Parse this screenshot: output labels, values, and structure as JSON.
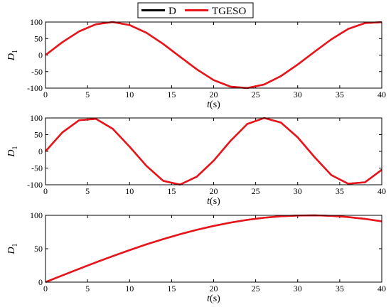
{
  "legend": {
    "entries": [
      {
        "label": "D",
        "color": "#000000"
      },
      {
        "label": "TGESO",
        "color": "#e8141a"
      }
    ],
    "placement": "top-center"
  },
  "chart_data": [
    {
      "type": "line",
      "xlabel_italic": "t",
      "xlabel_unit": "(s)",
      "ylabel_main": "D",
      "ylabel_sub": "1",
      "xlim": [
        0,
        40
      ],
      "ylim": [
        -100,
        100
      ],
      "xticks": [
        0,
        5,
        10,
        15,
        20,
        25,
        30,
        35,
        40
      ],
      "yticks": [
        -100,
        -50,
        0,
        50,
        100
      ],
      "x": [
        0,
        2,
        4,
        6,
        8,
        10,
        12,
        14,
        16,
        18,
        20,
        22,
        24,
        26,
        28,
        30,
        32,
        34,
        36,
        38,
        40
      ],
      "series": [
        {
          "name": "D",
          "color": "#000000",
          "values": [
            0,
            38.9,
            71.7,
            93.2,
            100,
            90.9,
            67.6,
            33.7,
            -5.0,
            -43.2,
            -75.7,
            -95.4,
            -99.8,
            -89.1,
            -63.7,
            -28.6,
            10.0,
            47.6,
            79.0,
            96.8,
            99.5
          ]
        },
        {
          "name": "TGESO",
          "color": "#e8141a",
          "values": [
            0,
            38.9,
            71.7,
            93.2,
            100,
            90.9,
            67.6,
            33.7,
            -5.0,
            -43.2,
            -75.7,
            -95.4,
            -99.8,
            -89.1,
            -63.7,
            -28.6,
            10.0,
            47.6,
            79.0,
            96.8,
            99.5
          ]
        }
      ]
    },
    {
      "type": "line",
      "xlabel_italic": "t",
      "xlabel_unit": "(s)",
      "ylabel_main": "D",
      "ylabel_sub": "1",
      "xlim": [
        0,
        40
      ],
      "ylim": [
        -100,
        100
      ],
      "xticks": [
        0,
        5,
        10,
        15,
        20,
        25,
        30,
        35,
        40
      ],
      "yticks": [
        -100,
        -50,
        0,
        50,
        100
      ],
      "x": [
        0,
        2,
        4,
        6,
        8,
        10,
        12,
        14,
        16,
        18,
        20,
        22,
        24,
        26,
        28,
        30,
        32,
        34,
        36,
        38,
        40
      ],
      "series": [
        {
          "name": "D",
          "color": "#000000",
          "values": [
            0,
            56.5,
            93.2,
            97.4,
            67.6,
            14.1,
            -43.2,
            -88.2,
            -99.6,
            -75.7,
            -28.0,
            31.1,
            81.9,
            99.9,
            86.4,
            42.0,
            -17.0,
            -71.0,
            -96.8,
            -92.6,
            -55.2
          ]
        },
        {
          "name": "TGESO",
          "color": "#e8141a",
          "values": [
            0,
            56.5,
            93.2,
            97.4,
            67.6,
            14.1,
            -43.2,
            -88.2,
            -99.6,
            -75.7,
            -28.0,
            31.1,
            81.9,
            99.9,
            86.4,
            42.0,
            -17.0,
            -71.0,
            -96.8,
            -92.6,
            -55.2
          ]
        }
      ]
    },
    {
      "type": "line",
      "xlabel_italic": "t",
      "xlabel_unit": "(s)",
      "ylabel_main": "D",
      "ylabel_sub": "1",
      "xlim": [
        0,
        40
      ],
      "ylim": [
        0,
        100
      ],
      "xticks": [
        0,
        5,
        10,
        15,
        20,
        25,
        30,
        35,
        40
      ],
      "yticks": [
        0,
        50,
        100
      ],
      "x": [
        0,
        2,
        4,
        6,
        8,
        10,
        12,
        14,
        16,
        18,
        20,
        22,
        24,
        26,
        28,
        30,
        32,
        34,
        36,
        38,
        40
      ],
      "series": [
        {
          "name": "D",
          "color": "#000000",
          "values": [
            0,
            10.0,
            19.9,
            29.6,
            38.9,
            47.9,
            56.5,
            64.4,
            71.7,
            78.3,
            84.1,
            89.1,
            93.2,
            96.4,
            98.6,
            99.7,
            100,
            99.2,
            97.4,
            94.7,
            91.0
          ]
        },
        {
          "name": "TGESO",
          "color": "#e8141a",
          "values": [
            0,
            10.0,
            19.9,
            29.6,
            38.9,
            47.9,
            56.5,
            64.4,
            71.7,
            78.3,
            84.1,
            89.1,
            93.2,
            96.4,
            98.6,
            99.7,
            100,
            99.2,
            97.4,
            94.7,
            91.0
          ]
        }
      ]
    }
  ]
}
